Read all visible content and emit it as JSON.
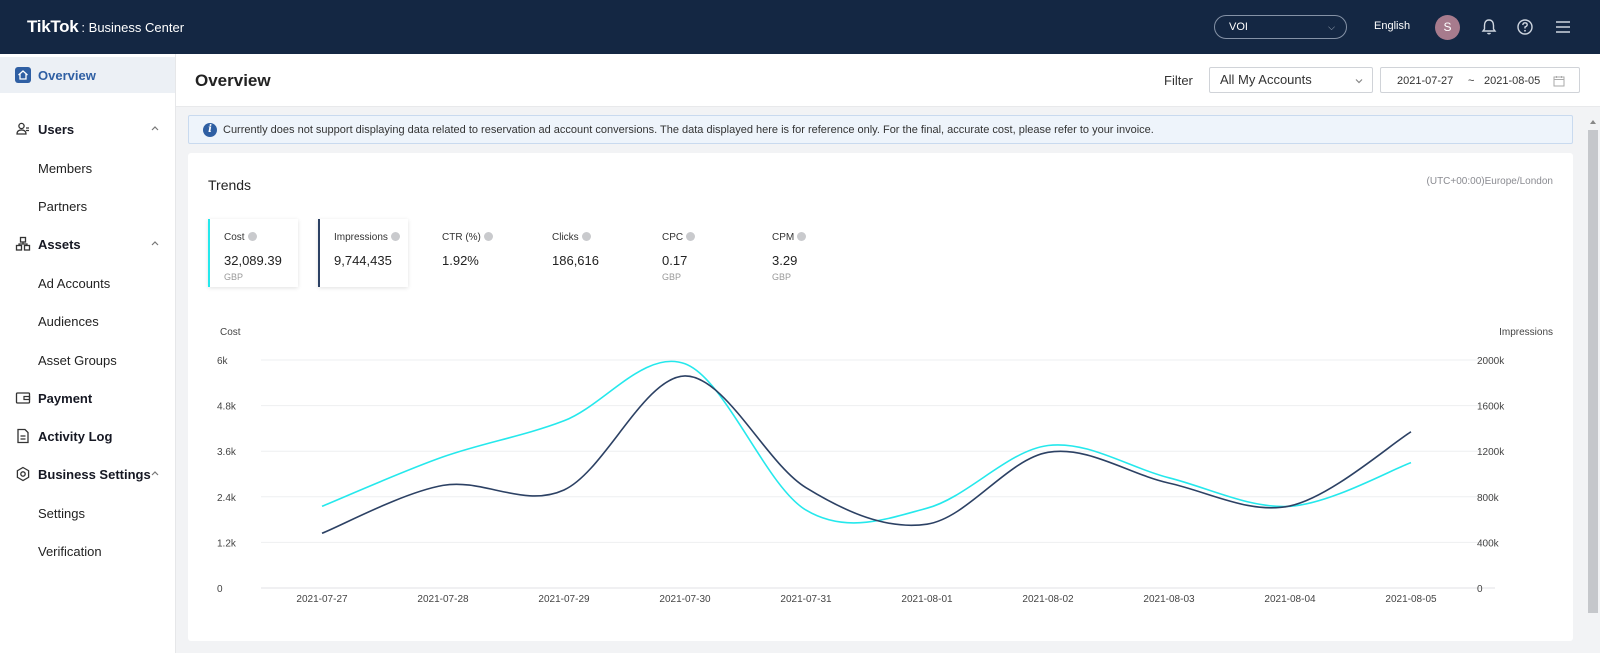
{
  "header": {
    "brand": "TikTok",
    "brand_suffix": ": Business Center",
    "account_select": "VOI",
    "language": "English",
    "avatar_initial": "S"
  },
  "sidebar": {
    "overview": "Overview",
    "users": "Users",
    "members": "Members",
    "partners": "Partners",
    "assets": "Assets",
    "ad_accounts": "Ad Accounts",
    "audiences": "Audiences",
    "asset_groups": "Asset Groups",
    "payment": "Payment",
    "activity_log": "Activity Log",
    "business_settings": "Business Settings",
    "settings": "Settings",
    "verification": "Verification"
  },
  "main": {
    "title": "Overview",
    "filter_label": "Filter",
    "filter_value": "All My Accounts",
    "date_start": "2021-07-27",
    "date_sep": "~",
    "date_end": "2021-08-05",
    "notice": "Currently does not support displaying data related to reservation ad account conversions. The data displayed here is for reference only. For the final, accurate cost, please refer to your invoice.",
    "notice_icon": "i"
  },
  "trends": {
    "title": "Trends",
    "timezone": "(UTC+00:00)Europe/London",
    "metrics": [
      {
        "name": "Cost",
        "value": "32,089.39",
        "unit": "GBP"
      },
      {
        "name": "Impressions",
        "value": "9,744,435",
        "unit": ""
      },
      {
        "name": "CTR (%)",
        "value": "1.92%",
        "unit": ""
      },
      {
        "name": "Clicks",
        "value": "186,616",
        "unit": ""
      },
      {
        "name": "CPC",
        "value": "0.17",
        "unit": "GBP"
      },
      {
        "name": "CPM",
        "value": "3.29",
        "unit": "GBP"
      }
    ]
  },
  "colors": {
    "cost_line": "#25e8ec",
    "impressions_line": "#2c4164",
    "topbar": "#142743",
    "accent": "#2f5fa3"
  },
  "chart_data": {
    "type": "line",
    "x": [
      "2021-07-27",
      "2021-07-28",
      "2021-07-29",
      "2021-07-30",
      "2021-07-31",
      "2021-08-01",
      "2021-08-02",
      "2021-08-03",
      "2021-08-04",
      "2021-08-05"
    ],
    "series": [
      {
        "name": "Cost",
        "axis": "left",
        "values": [
          2150,
          3450,
          4400,
          5900,
          2050,
          2100,
          3750,
          2900,
          2150,
          3300
        ]
      },
      {
        "name": "Impressions",
        "axis": "right",
        "values": [
          480000,
          900000,
          860000,
          1860000,
          880000,
          560000,
          1190000,
          920000,
          720000,
          1370000
        ]
      }
    ],
    "ylabel_left": "Cost",
    "ylabel_right": "Impressions",
    "yticks_left": [
      "0",
      "1.2k",
      "2.4k",
      "3.6k",
      "4.8k",
      "6k"
    ],
    "yticks_right": [
      "0",
      "400k",
      "800k",
      "1200k",
      "1600k",
      "2000k"
    ],
    "ylim_left": [
      0,
      6000
    ],
    "ylim_right": [
      0,
      2000000
    ],
    "grid": true
  }
}
